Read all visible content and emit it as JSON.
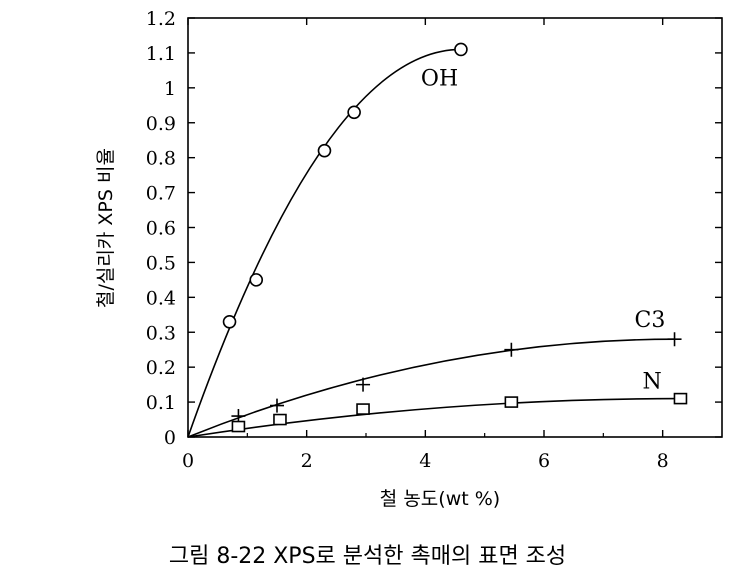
{
  "caption": "그림 8-22 XPS로 분석한 촉매의 표면 조성",
  "chart_data": {
    "type": "scatter",
    "title": "",
    "xlabel": "철 농도(wt %)",
    "ylabel": "철/실리카 XPS 비율",
    "xlim": [
      0,
      9
    ],
    "ylim": [
      0,
      1.2
    ],
    "x_ticks": [
      "0",
      "2",
      "4",
      "6",
      "8"
    ],
    "y_ticks": [
      "0",
      "0.1",
      "0.2",
      "0.3",
      "0.4",
      "0.5",
      "0.6",
      "0.7",
      "0.8",
      "0.9",
      "1",
      "1.1",
      "1.2"
    ],
    "grid": false,
    "series": [
      {
        "name": "OH",
        "marker": "circle",
        "points": [
          [
            0.7,
            0.33
          ],
          [
            1.15,
            0.45
          ],
          [
            2.3,
            0.82
          ],
          [
            2.8,
            0.93
          ],
          [
            4.6,
            1.11
          ]
        ]
      },
      {
        "name": "C3",
        "marker": "plus",
        "points": [
          [
            0.85,
            0.06
          ],
          [
            1.5,
            0.09
          ],
          [
            2.95,
            0.15
          ],
          [
            5.45,
            0.25
          ],
          [
            8.2,
            0.28
          ]
        ]
      },
      {
        "name": "N",
        "marker": "square",
        "points": [
          [
            0.85,
            0.03
          ],
          [
            1.55,
            0.05
          ],
          [
            2.95,
            0.08
          ],
          [
            5.45,
            0.1
          ],
          [
            8.3,
            0.11
          ]
        ]
      }
    ]
  }
}
